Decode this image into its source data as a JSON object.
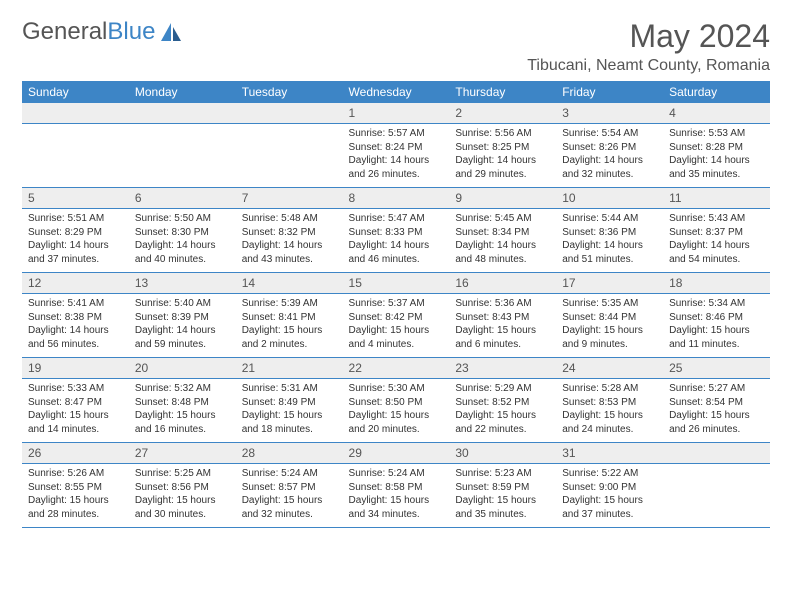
{
  "logo": {
    "part1": "General",
    "part2": "Blue"
  },
  "title": "May 2024",
  "location": "Tibucani, Neamt County, Romania",
  "weekdays": [
    "Sunday",
    "Monday",
    "Tuesday",
    "Wednesday",
    "Thursday",
    "Friday",
    "Saturday"
  ],
  "colors": {
    "header_bg": "#3d85c6",
    "header_fg": "#ffffff",
    "daynum_bg": "#eeeeee",
    "text": "#555555",
    "body_text": "#333333",
    "rule": "#3d85c6"
  },
  "weeks": [
    [
      null,
      null,
      null,
      {
        "n": "1",
        "sr": "5:57 AM",
        "ss": "8:24 PM",
        "dl": "14 hours and 26 minutes."
      },
      {
        "n": "2",
        "sr": "5:56 AM",
        "ss": "8:25 PM",
        "dl": "14 hours and 29 minutes."
      },
      {
        "n": "3",
        "sr": "5:54 AM",
        "ss": "8:26 PM",
        "dl": "14 hours and 32 minutes."
      },
      {
        "n": "4",
        "sr": "5:53 AM",
        "ss": "8:28 PM",
        "dl": "14 hours and 35 minutes."
      }
    ],
    [
      {
        "n": "5",
        "sr": "5:51 AM",
        "ss": "8:29 PM",
        "dl": "14 hours and 37 minutes."
      },
      {
        "n": "6",
        "sr": "5:50 AM",
        "ss": "8:30 PM",
        "dl": "14 hours and 40 minutes."
      },
      {
        "n": "7",
        "sr": "5:48 AM",
        "ss": "8:32 PM",
        "dl": "14 hours and 43 minutes."
      },
      {
        "n": "8",
        "sr": "5:47 AM",
        "ss": "8:33 PM",
        "dl": "14 hours and 46 minutes."
      },
      {
        "n": "9",
        "sr": "5:45 AM",
        "ss": "8:34 PM",
        "dl": "14 hours and 48 minutes."
      },
      {
        "n": "10",
        "sr": "5:44 AM",
        "ss": "8:36 PM",
        "dl": "14 hours and 51 minutes."
      },
      {
        "n": "11",
        "sr": "5:43 AM",
        "ss": "8:37 PM",
        "dl": "14 hours and 54 minutes."
      }
    ],
    [
      {
        "n": "12",
        "sr": "5:41 AM",
        "ss": "8:38 PM",
        "dl": "14 hours and 56 minutes."
      },
      {
        "n": "13",
        "sr": "5:40 AM",
        "ss": "8:39 PM",
        "dl": "14 hours and 59 minutes."
      },
      {
        "n": "14",
        "sr": "5:39 AM",
        "ss": "8:41 PM",
        "dl": "15 hours and 2 minutes."
      },
      {
        "n": "15",
        "sr": "5:37 AM",
        "ss": "8:42 PM",
        "dl": "15 hours and 4 minutes."
      },
      {
        "n": "16",
        "sr": "5:36 AM",
        "ss": "8:43 PM",
        "dl": "15 hours and 6 minutes."
      },
      {
        "n": "17",
        "sr": "5:35 AM",
        "ss": "8:44 PM",
        "dl": "15 hours and 9 minutes."
      },
      {
        "n": "18",
        "sr": "5:34 AM",
        "ss": "8:46 PM",
        "dl": "15 hours and 11 minutes."
      }
    ],
    [
      {
        "n": "19",
        "sr": "5:33 AM",
        "ss": "8:47 PM",
        "dl": "15 hours and 14 minutes."
      },
      {
        "n": "20",
        "sr": "5:32 AM",
        "ss": "8:48 PM",
        "dl": "15 hours and 16 minutes."
      },
      {
        "n": "21",
        "sr": "5:31 AM",
        "ss": "8:49 PM",
        "dl": "15 hours and 18 minutes."
      },
      {
        "n": "22",
        "sr": "5:30 AM",
        "ss": "8:50 PM",
        "dl": "15 hours and 20 minutes."
      },
      {
        "n": "23",
        "sr": "5:29 AM",
        "ss": "8:52 PM",
        "dl": "15 hours and 22 minutes."
      },
      {
        "n": "24",
        "sr": "5:28 AM",
        "ss": "8:53 PM",
        "dl": "15 hours and 24 minutes."
      },
      {
        "n": "25",
        "sr": "5:27 AM",
        "ss": "8:54 PM",
        "dl": "15 hours and 26 minutes."
      }
    ],
    [
      {
        "n": "26",
        "sr": "5:26 AM",
        "ss": "8:55 PM",
        "dl": "15 hours and 28 minutes."
      },
      {
        "n": "27",
        "sr": "5:25 AM",
        "ss": "8:56 PM",
        "dl": "15 hours and 30 minutes."
      },
      {
        "n": "28",
        "sr": "5:24 AM",
        "ss": "8:57 PM",
        "dl": "15 hours and 32 minutes."
      },
      {
        "n": "29",
        "sr": "5:24 AM",
        "ss": "8:58 PM",
        "dl": "15 hours and 34 minutes."
      },
      {
        "n": "30",
        "sr": "5:23 AM",
        "ss": "8:59 PM",
        "dl": "15 hours and 35 minutes."
      },
      {
        "n": "31",
        "sr": "5:22 AM",
        "ss": "9:00 PM",
        "dl": "15 hours and 37 minutes."
      },
      null
    ]
  ],
  "labels": {
    "sunrise": "Sunrise:",
    "sunset": "Sunset:",
    "daylight": "Daylight:"
  }
}
